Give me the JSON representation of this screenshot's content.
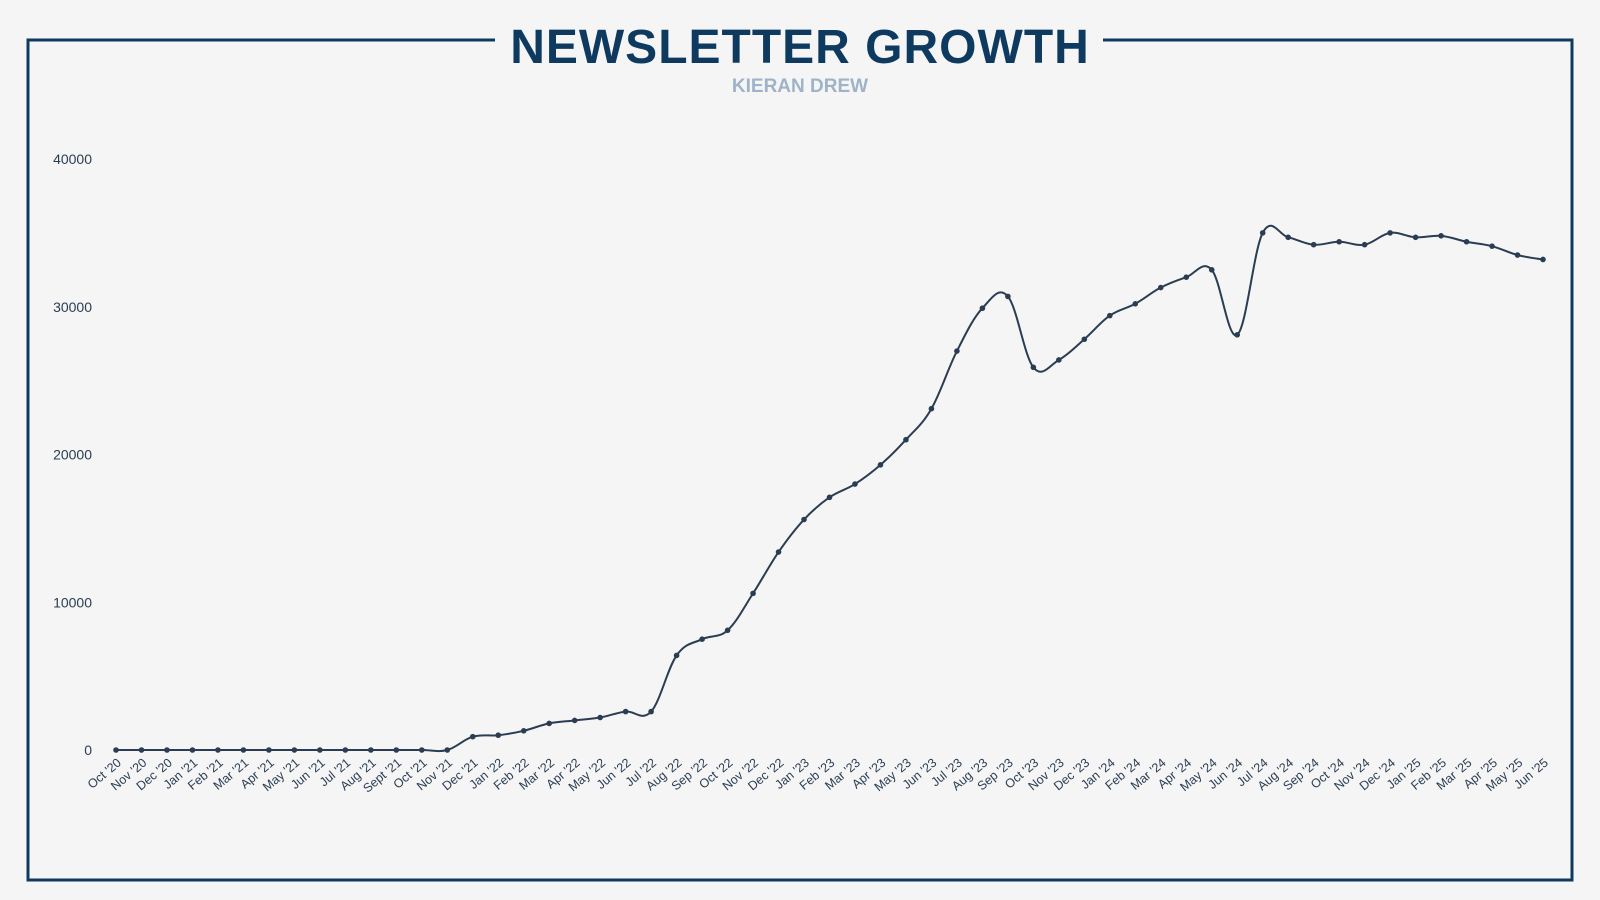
{
  "colors": {
    "background": "#f5f5f5",
    "frame": "#0f3a5f",
    "title": "#0f3a5f",
    "subtitle": "#9fb3c8",
    "line": "#2a3d52",
    "axis_text": "#2a3d52"
  },
  "chart_data": {
    "type": "line",
    "title": "NEWSLETTER GROWTH",
    "subtitle": "KIERAN DREW",
    "xlabel": "",
    "ylabel": "",
    "ylim": [
      0,
      40000
    ],
    "yticks": [
      0,
      10000,
      20000,
      30000,
      40000
    ],
    "grid": false,
    "legend": "none",
    "categories": [
      "Oct '20",
      "Nov '20",
      "Dec '20",
      "Jan '21",
      "Feb '21",
      "Mar '21",
      "Apr '21",
      "May '21",
      "Jun '21",
      "Jul '21",
      "Aug '21",
      "Sept '21",
      "Oct '21",
      "Nov '21",
      "Dec '21",
      "Jan '22",
      "Feb '22",
      "Mar '22",
      "Apr '22",
      "May '22",
      "Jun '22",
      "Jul '22",
      "Aug '22",
      "Sep '22",
      "Oct '22",
      "Nov '22",
      "Dec '22",
      "Jan '23",
      "Feb '23",
      "Mar '23",
      "Apr '23",
      "May '23",
      "Jun '23",
      "Jul '23",
      "Aug '23",
      "Sep '23",
      "Oct '23",
      "Nov '23",
      "Dec '23",
      "Jan '24",
      "Feb '24",
      "Mar '24",
      "Apr '24",
      "May '24",
      "Jun '24",
      "Jul '24",
      "Aug '24",
      "Sep '24",
      "Oct '24",
      "Nov '24",
      "Dec '24",
      "Jan '25",
      "Feb '25",
      "Mar '25",
      "Apr '25",
      "May '25",
      "Jun '25"
    ],
    "series": [
      {
        "values": [
          0,
          0,
          0,
          0,
          0,
          0,
          0,
          0,
          0,
          0,
          0,
          0,
          0,
          0,
          900,
          1000,
          1300,
          1800,
          2000,
          2200,
          2600,
          2600,
          6400,
          7500,
          8100,
          10600,
          13400,
          15600,
          17100,
          18000,
          19300,
          21000,
          23100,
          27000,
          29900,
          30700,
          25900,
          26400,
          27800,
          29400,
          30200,
          31300,
          32000,
          32500,
          28100,
          35000,
          34700,
          34200,
          34400,
          34200,
          35000,
          34700,
          34800,
          34400,
          34100,
          33500,
          33200
        ]
      }
    ]
  }
}
